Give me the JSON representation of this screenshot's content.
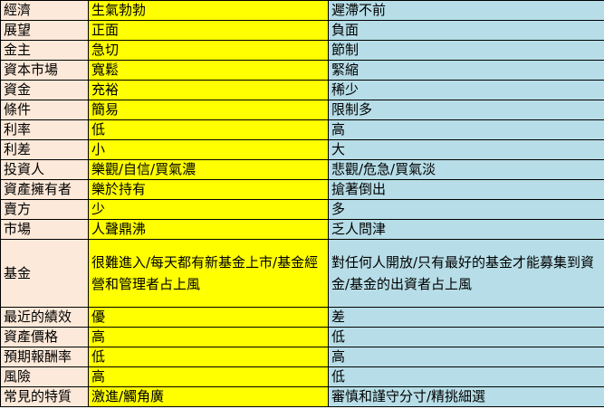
{
  "colors": {
    "label_col": "#fde9d9",
    "boom_col": "#ffff00",
    "bust_col": "#b7dee8"
  },
  "rows": [
    {
      "label": "經濟",
      "boom": "生氣勃勃",
      "bust": "遲滯不前"
    },
    {
      "label": "展望",
      "boom": "正面",
      "bust": "負面"
    },
    {
      "label": "金主",
      "boom": "急切",
      "bust": "節制"
    },
    {
      "label": "資本市場",
      "boom": "寬鬆",
      "bust": "緊縮"
    },
    {
      "label": "資金",
      "boom": "充裕",
      "bust": "稀少"
    },
    {
      "label": "條件",
      "boom": "簡易",
      "bust": "限制多"
    },
    {
      "label": "利率",
      "boom": "低",
      "bust": "高"
    },
    {
      "label": "利差",
      "boom": "小",
      "bust": "大"
    },
    {
      "label": "投資人",
      "boom": "樂觀/自信/買氣濃",
      "bust": "悲觀/危急/買氣淡"
    },
    {
      "label": "資產擁有者",
      "boom": "樂於持有",
      "bust": "搶著倒出"
    },
    {
      "label": "賣方",
      "boom": "少",
      "bust": "多"
    },
    {
      "label": "市場",
      "boom": "人聲鼎沸",
      "bust": "乏人問津"
    },
    {
      "label": "基金",
      "boom": "很難進入/每天都有新基金上市/基金經營和管理者占上風",
      "bust": "對任何人開放/只有最好的基金才能募集到資金/基金的出資者占上風"
    },
    {
      "label": "最近的績效",
      "boom": "優",
      "bust": "差"
    },
    {
      "label": "資產價格",
      "boom": "高",
      "bust": "低"
    },
    {
      "label": "預期報酬率",
      "boom": "低",
      "bust": "高"
    },
    {
      "label": "風險",
      "boom": "高",
      "bust": "低"
    },
    {
      "label": "常見的特質",
      "boom": "激進/觸角廣",
      "bust": "審慎和謹守分寸/精挑細選"
    }
  ]
}
